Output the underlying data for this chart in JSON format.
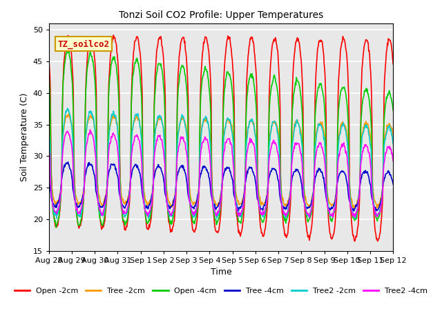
{
  "title": "Tonzi Soil CO2 Profile: Upper Temperatures",
  "xlabel": "Time",
  "ylabel": "Soil Temperature (C)",
  "ylim": [
    15,
    51
  ],
  "yticks": [
    15,
    20,
    25,
    30,
    35,
    40,
    45,
    50
  ],
  "annotation_text": "TZ_soilco2",
  "annotation_box_color": "#ffffcc",
  "annotation_box_edge": "#cc9900",
  "plot_bg_color": "#e8e8e8",
  "series": [
    {
      "label": "Open -2cm",
      "color": "#ff0000",
      "lw": 1.2
    },
    {
      "label": "Tree -2cm",
      "color": "#ff9900",
      "lw": 1.2
    },
    {
      "label": "Open -4cm",
      "color": "#00cc00",
      "lw": 1.2
    },
    {
      "label": "Tree -4cm",
      "color": "#0000cc",
      "lw": 1.2
    },
    {
      "label": "Tree2 -2cm",
      "color": "#00cccc",
      "lw": 1.2
    },
    {
      "label": "Tree2 -4cm",
      "color": "#ff00ff",
      "lw": 1.2
    }
  ],
  "xtick_labels": [
    "Aug 28",
    "Aug 29",
    "Aug 30",
    "Aug 31",
    "Sep 1",
    "Sep 2",
    "Sep 3",
    "Sep 4",
    "Sep 5",
    "Sep 6",
    "Sep 7",
    "Sep 8",
    "Sep 9",
    "Sep 10",
    "Sep 11",
    "Sep 12"
  ],
  "n_days": 15,
  "samples_per_day": 48,
  "legend_ncol": 6
}
